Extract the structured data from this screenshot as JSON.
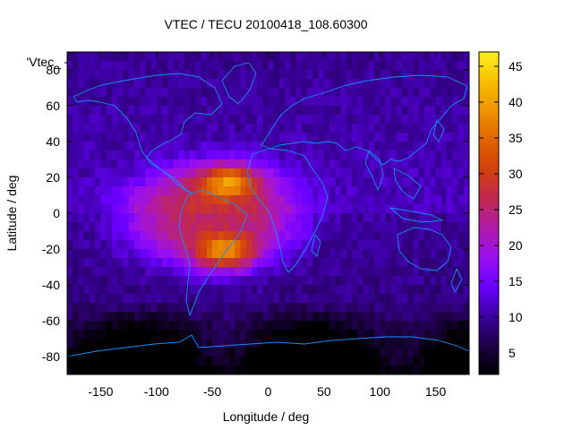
{
  "chart_data": {
    "type": "heatmap",
    "title": "VTEC / TECU 20100418_108.60300",
    "xlabel": "Longitude / deg",
    "ylabel": "Latitude / deg",
    "legend_key": "'Vtec_",
    "xlim": [
      -180,
      180
    ],
    "ylim": [
      -90,
      90
    ],
    "xticks": [
      -150,
      -100,
      -50,
      0,
      50,
      100,
      150
    ],
    "yticks": [
      -80,
      -60,
      -40,
      -20,
      0,
      20,
      40,
      60,
      80
    ],
    "colorbar": {
      "range": [
        2,
        47
      ],
      "ticks": [
        5,
        10,
        15,
        20,
        25,
        30,
        35,
        40,
        45
      ]
    },
    "colormap": [
      "#000000",
      "#1e0046",
      "#3c00a0",
      "#6a00ff",
      "#9a10f0",
      "#b01aa8",
      "#c02850",
      "#d2400e",
      "#e06400",
      "#ee9200",
      "#f8c000",
      "#ffee20"
    ],
    "grid": false,
    "features": {
      "background_level": 10,
      "anomaly_peaks": [
        {
          "lon": -35,
          "lat": 18,
          "vtec": 45
        },
        {
          "lon": -38,
          "lat": -22,
          "vtec": 46
        }
      ],
      "anomaly_center": {
        "lon": -50,
        "lat": -2
      },
      "south_polar_minimum": 3
    },
    "coastline_color": "#1a8cff"
  }
}
